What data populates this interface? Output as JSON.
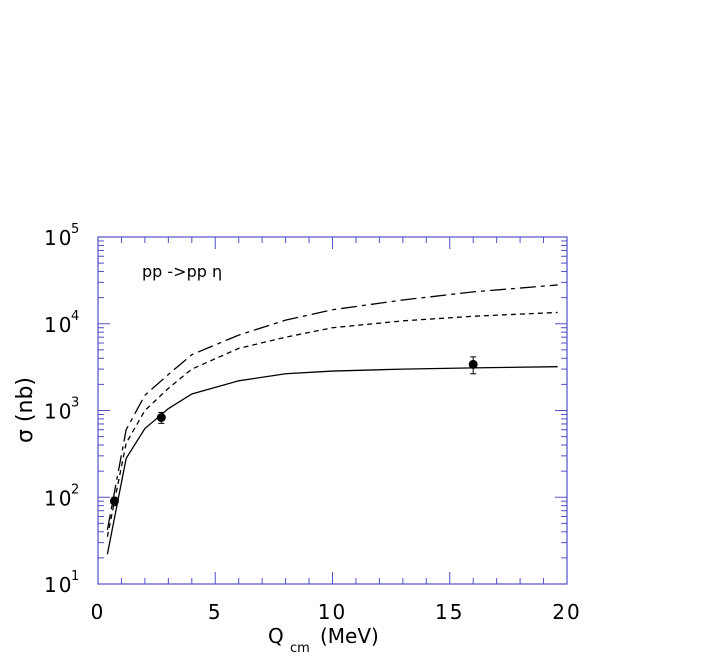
{
  "chart_data": {
    "type": "line",
    "annotation": "pp ->pp  η",
    "x_label": {
      "text": "Q",
      "subscript": "cm",
      "unit": "(MeV)"
    },
    "y_label": "σ (nb)",
    "log_y": true,
    "axis_color": "#5050c8",
    "xlim": [
      0,
      20
    ],
    "xticks": [
      0,
      5,
      10,
      15,
      20
    ],
    "ylim": [
      10,
      100000
    ],
    "yticks": [
      {
        "value": 10,
        "label": "10",
        "exponent": "1"
      },
      {
        "value": 100,
        "label": "10",
        "exponent": "2"
      },
      {
        "value": 1000,
        "label": "10",
        "exponent": "3"
      },
      {
        "value": 10000,
        "label": "10",
        "exponent": "4"
      },
      {
        "value": 100000,
        "label": "10",
        "exponent": "5"
      }
    ],
    "series": [
      {
        "style": "solid",
        "color": "#000000",
        "x": [
          0.4,
          1.2,
          2,
          3,
          4,
          6,
          8,
          10,
          13,
          16,
          19.6
        ],
        "values": [
          22,
          280,
          620,
          1050,
          1550,
          2200,
          2650,
          2850,
          3000,
          3100,
          3200
        ]
      },
      {
        "style": "dashed",
        "color": "#000000",
        "x": [
          0.4,
          1.2,
          2,
          3,
          4,
          6,
          8,
          10,
          13,
          16,
          19.6
        ],
        "values": [
          35,
          420,
          1000,
          1800,
          3000,
          5200,
          7000,
          9000,
          10800,
          12200,
          13500
        ]
      },
      {
        "style": "dashdot",
        "color": "#000000",
        "x": [
          0.4,
          1.2,
          2,
          3,
          4,
          6,
          8,
          10,
          13,
          16,
          19.6
        ],
        "values": [
          42,
          600,
          1500,
          2600,
          4400,
          7400,
          11000,
          14500,
          18800,
          23300,
          28000
        ]
      }
    ],
    "points": {
      "color": "#000000",
      "x": [
        0.7,
        2.7,
        16
      ],
      "values": [
        90,
        830,
        3400
      ],
      "errors": [
        10,
        120,
        750
      ]
    }
  }
}
